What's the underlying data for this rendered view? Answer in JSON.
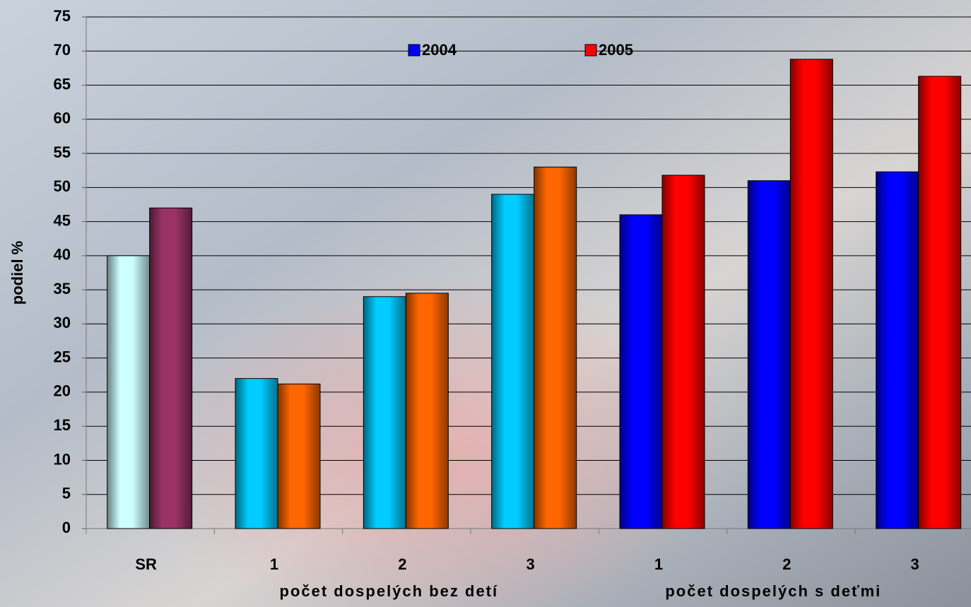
{
  "chart_data": {
    "type": "bar",
    "y_label": "podiel %",
    "categories": [
      "SR",
      "1",
      "2",
      "3",
      "1",
      "2",
      "3"
    ],
    "group_labels": [
      "počet dospelých bez detí",
      "počet dospelých s deťmi"
    ],
    "series": [
      {
        "name": "2004",
        "color": "#0000ff",
        "colors": [
          "#ccffff",
          "#00ccff",
          "#00ccff",
          "#00ccff",
          "#0000ff",
          "#0000ff",
          "#0000ff"
        ],
        "values": [
          40,
          22,
          34,
          49,
          46,
          51,
          52.3
        ]
      },
      {
        "name": "2005",
        "color": "#ff0000",
        "colors": [
          "#993366",
          "#ff6600",
          "#ff6600",
          "#ff6600",
          "#ff0000",
          "#ff0000",
          "#ff0000"
        ],
        "values": [
          47,
          21.2,
          34.5,
          53,
          51.8,
          68.8,
          66.3
        ]
      }
    ],
    "ylim": [
      0,
      75
    ],
    "yticks": [
      0,
      5,
      10,
      15,
      20,
      25,
      30,
      35,
      40,
      45,
      50,
      55,
      60,
      65,
      70,
      75
    ],
    "grid": true
  }
}
